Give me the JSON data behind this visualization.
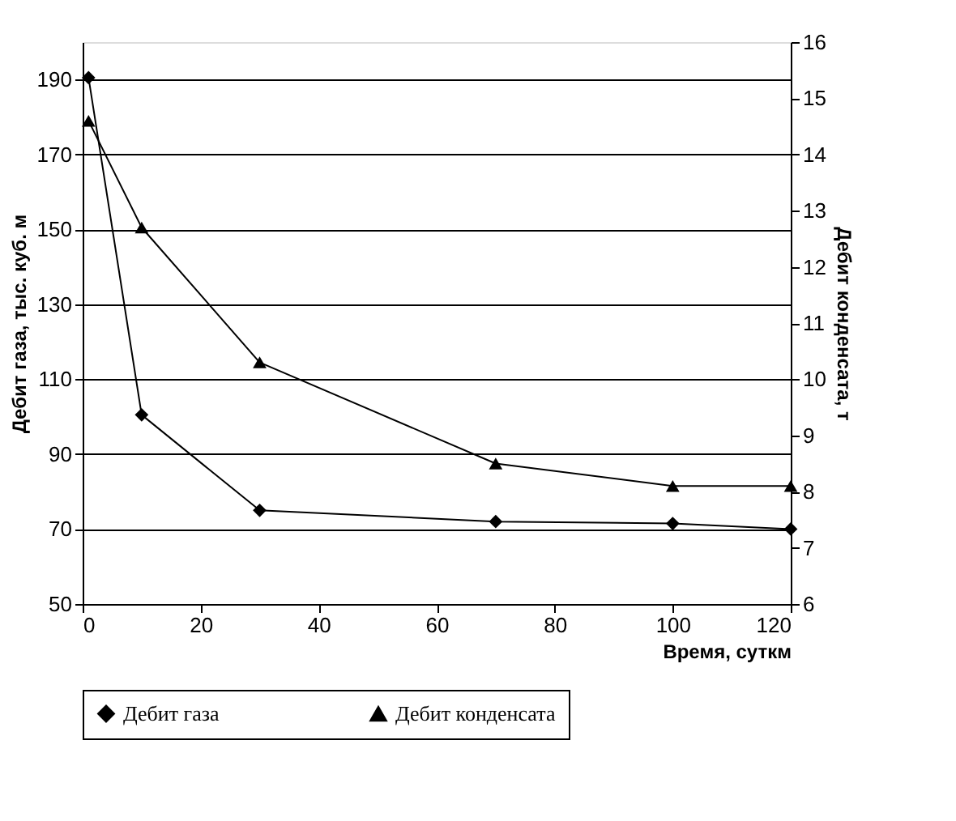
{
  "chart_data": {
    "type": "line",
    "xlabel": "Время, суткм",
    "ylabel": "Дебит газа, тыс. куб. м",
    "y2label": "Дебит конденсата, т",
    "x": [
      1,
      10,
      30,
      70,
      100,
      120
    ],
    "series": [
      {
        "name": "Дебит газа",
        "color": "#000000",
        "marker": "diamond",
        "values": [
          190.5,
          100.5,
          75,
          72,
          71.5,
          70
        ]
      },
      {
        "name": "Дебит конденсата",
        "color": "#000000",
        "marker": "triangle",
        "axis": "y2",
        "values": [
          14.6,
          12.7,
          10.3,
          8.5,
          8.1,
          8.1
        ]
      }
    ],
    "xlim": [
      0,
      120
    ],
    "xticks": [
      0,
      20,
      40,
      60,
      80,
      100,
      120
    ],
    "ylim": [
      50,
      200
    ],
    "yticks": [
      50,
      70,
      90,
      110,
      130,
      150,
      170,
      190
    ],
    "y2lim": [
      6,
      16
    ],
    "y2ticks": [
      6,
      7,
      8,
      9,
      10,
      11,
      12,
      13,
      14,
      15,
      16
    ],
    "grid": "y",
    "legend": "bottom",
    "line_style": "solid"
  }
}
